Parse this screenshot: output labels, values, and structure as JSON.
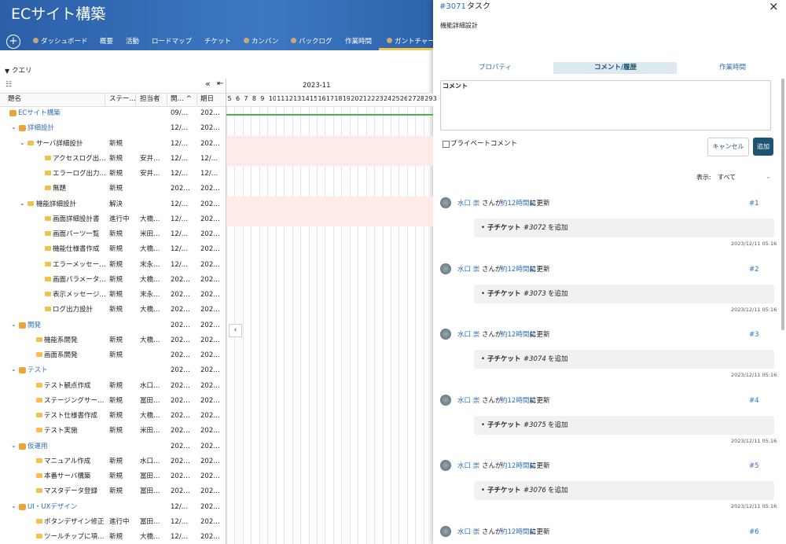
{
  "header": {
    "title": "ECサイト構築",
    "nav": [
      "ダッシュボード",
      "概要",
      "活動",
      "ロードマップ",
      "チケット",
      "カンバン",
      "バックログ",
      "作業時間",
      "ガントチャー"
    ]
  },
  "toolbar": {
    "query": "クエリ"
  },
  "table": {
    "columns": [
      "題名",
      "ステー…",
      "担当者",
      "開… ^",
      "期日"
    ],
    "rows": [
      {
        "title": "ECサイト構築",
        "kind": "project",
        "level": 0,
        "start": "09/…",
        "due": "202…"
      },
      {
        "title": "詳細設計",
        "kind": "group",
        "level": 0,
        "start": "12/…",
        "due": "202…"
      },
      {
        "title": "サーバ詳細設計",
        "kind": "folder",
        "level": 1,
        "status": "新規",
        "start": "12/…",
        "due": "202…",
        "highlight": true
      },
      {
        "title": "アクセスログ出…",
        "kind": "task",
        "level": 2,
        "status": "新規",
        "assignee": "安井…",
        "start": "12/…",
        "due": "12/…",
        "highlight": true
      },
      {
        "title": "エラーログ出力…",
        "kind": "task",
        "level": 2,
        "status": "新規",
        "assignee": "安井…",
        "start": "12/…",
        "due": "12/…"
      },
      {
        "title": "無題",
        "kind": "task",
        "level": 2,
        "status": "新規",
        "start": "202…",
        "due": "202…"
      },
      {
        "title": "機能詳細設計",
        "kind": "folder",
        "level": 1,
        "status": "解決",
        "start": "12/…",
        "due": "202…",
        "highlight": true
      },
      {
        "title": "画面詳細設計書",
        "kind": "task",
        "level": 2,
        "status": "進行中",
        "assignee": "大橋…",
        "start": "12/…",
        "due": "202…",
        "highlight": true
      },
      {
        "title": "画面パーツ一覧",
        "kind": "task",
        "level": 2,
        "status": "新規",
        "assignee": "米田…",
        "start": "12/…",
        "due": "202…"
      },
      {
        "title": "機能仕様書作成",
        "kind": "task",
        "level": 2,
        "status": "新規",
        "assignee": "大橋…",
        "start": "12/…",
        "due": "202…"
      },
      {
        "title": "エラーメッセー…",
        "kind": "task",
        "level": 2,
        "status": "新規",
        "assignee": "末永…",
        "start": "12/…",
        "due": "202…"
      },
      {
        "title": "画面パラメータ…",
        "kind": "task",
        "level": 2,
        "status": "新規",
        "assignee": "大橋…",
        "start": "202…",
        "due": "202…"
      },
      {
        "title": "表示メッセージ…",
        "kind": "task",
        "level": 2,
        "status": "新規",
        "assignee": "末永…",
        "start": "202…",
        "due": "202…"
      },
      {
        "title": "ログ出力設計",
        "kind": "task",
        "level": 2,
        "status": "新規",
        "assignee": "大橋…",
        "start": "202…",
        "due": "202…"
      },
      {
        "title": "開発",
        "kind": "group",
        "level": 0,
        "start": "202…",
        "due": "202…"
      },
      {
        "title": "機能系開発",
        "kind": "task",
        "level": 1,
        "status": "新規",
        "assignee": "大橋…",
        "start": "202…",
        "due": "202…"
      },
      {
        "title": "画面系開発",
        "kind": "task",
        "level": 1,
        "status": "新規",
        "start": "202…",
        "due": "202…"
      },
      {
        "title": "テスト",
        "kind": "group",
        "level": 0,
        "start": "202…",
        "due": "202…"
      },
      {
        "title": "テスト観点作成",
        "kind": "task",
        "level": 1,
        "status": "新規",
        "assignee": "水口…",
        "start": "202…",
        "due": "202…"
      },
      {
        "title": "ステージングサー…",
        "kind": "task",
        "level": 1,
        "status": "新規",
        "assignee": "冨田…",
        "start": "202…",
        "due": "202…"
      },
      {
        "title": "テスト仕様書作成",
        "kind": "task",
        "level": 1,
        "status": "新規",
        "assignee": "大橋…",
        "start": "202…",
        "due": "202…"
      },
      {
        "title": "テスト実施",
        "kind": "task",
        "level": 1,
        "status": "新規",
        "assignee": "米田…",
        "start": "202…",
        "due": "202…"
      },
      {
        "title": "仮運用",
        "kind": "group",
        "level": 0,
        "start": "202…",
        "due": "202…"
      },
      {
        "title": "マニュアル作成",
        "kind": "task",
        "level": 1,
        "status": "新規",
        "assignee": "水口…",
        "start": "202…",
        "due": "202…"
      },
      {
        "title": "本番サーバ構築",
        "kind": "task",
        "level": 1,
        "status": "新規",
        "assignee": "冨田…",
        "start": "202…",
        "due": "202…"
      },
      {
        "title": "マスタデータ登録",
        "kind": "task",
        "level": 1,
        "status": "新規",
        "assignee": "冨田…",
        "start": "202…",
        "due": "202…"
      },
      {
        "title": "UI・UXデザイン",
        "kind": "group",
        "level": 0,
        "start": "12/…",
        "due": "202…"
      },
      {
        "title": "ボタンデザイン修正",
        "kind": "task",
        "level": 1,
        "status": "進行中",
        "assignee": "冨田…",
        "start": "12/…",
        "due": "202…"
      },
      {
        "title": "ツールチップに項…",
        "kind": "task",
        "level": 1,
        "status": "新規",
        "assignee": "大橋…",
        "start": "12/…",
        "due": "202…"
      }
    ]
  },
  "gantt": {
    "month": "2023-11",
    "days": [
      "5",
      "6",
      "7",
      "8",
      "9",
      "10",
      "11",
      "12",
      "13",
      "14",
      "15",
      "16",
      "17",
      "18",
      "19",
      "20",
      "21",
      "22",
      "23",
      "24",
      "25",
      "26",
      "27",
      "28",
      "29",
      "3"
    ]
  },
  "panel": {
    "ticket": "#3071",
    "tracker": "タスク",
    "subject": "機能詳細設計",
    "tabs": [
      "プロパティ",
      "コメント/履歴",
      "作業時間"
    ],
    "comment_label": "コメント",
    "private": "プライベートコメント",
    "cancel": "キャンセル",
    "add": "追加",
    "filter_label": "表示:",
    "filter_value": "すべて",
    "activities": [
      {
        "user": "水口 崇",
        "verb": "さんが",
        "time": "約12時間前",
        "suffix": "に更新",
        "number": "#1",
        "detail": {
          "label": "子チケット",
          "ticket": "#3072",
          "text": "を追加"
        },
        "timestamp": "2023/12/11 05:16"
      },
      {
        "user": "水口 崇",
        "verb": "さんが",
        "time": "約12時間前",
        "suffix": "に更新",
        "number": "#2",
        "detail": {
          "label": "子チケット",
          "ticket": "#3073",
          "text": "を追加"
        },
        "timestamp": "2023/12/11 05:16"
      },
      {
        "user": "水口 崇",
        "verb": "さんが",
        "time": "約12時間前",
        "suffix": "に更新",
        "number": "#3",
        "detail": {
          "label": "子チケット",
          "ticket": "#3074",
          "text": "を追加"
        },
        "timestamp": "2023/12/11 05:16"
      },
      {
        "user": "水口 崇",
        "verb": "さんが",
        "time": "約12時間前",
        "suffix": "に更新",
        "number": "#4",
        "detail": {
          "label": "子チケット",
          "ticket": "#3075",
          "text": "を追加"
        },
        "timestamp": "2023/12/11 05:16"
      },
      {
        "user": "水口 崇",
        "verb": "さんが",
        "time": "約12時間前",
        "suffix": "に更新",
        "number": "#5",
        "detail": {
          "label": "子チケット",
          "ticket": "#3076",
          "text": "を追加"
        },
        "timestamp": "2023/12/11 05:16"
      },
      {
        "user": "水口 崇",
        "verb": "さんが",
        "time": "約12時間前",
        "suffix": "に更新",
        "number": "#6"
      }
    ]
  }
}
